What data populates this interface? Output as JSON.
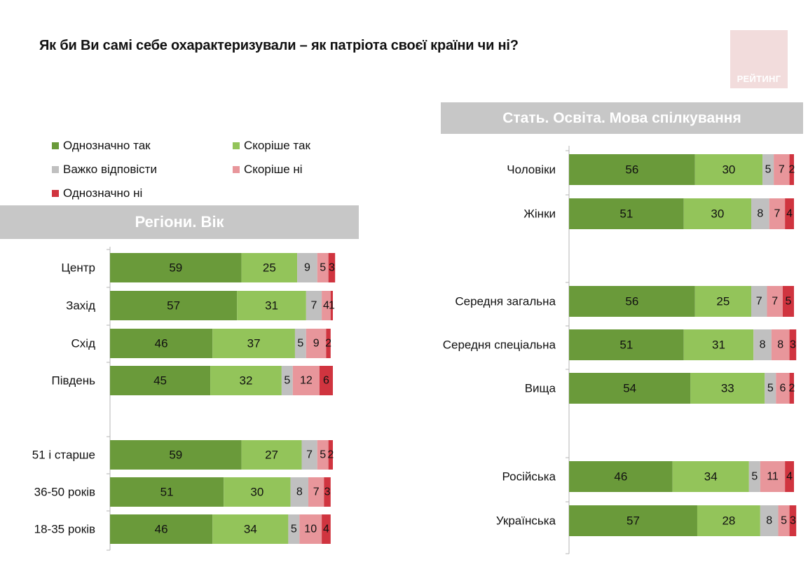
{
  "title": "Як  би Ви самі себе охарактеризували – як патріота своєї країни чи ні?",
  "logo_text": "РЕЙТИНГ",
  "panels": {
    "left_heading": "Регіони. Вік",
    "right_heading": "Стать. Освіта. Мова спілкування"
  },
  "colors": {
    "definitely_yes": "#6a9a3a",
    "rather_yes": "#93c45a",
    "hard_to_say": "#c0c0c0",
    "rather_no": "#e8969b",
    "definitely_no": "#d0343f",
    "heading_band": "#c7c7c7"
  },
  "chart_data": {
    "type": "bar",
    "orientation": "horizontal",
    "stacked": true,
    "xlim": [
      0,
      100
    ],
    "legend": [
      "Однозначно так",
      "Скоріше так",
      "Важко відповісти",
      "Скоріше ні",
      "Однозначно ні"
    ],
    "groups": [
      {
        "heading": "Регіони. Вік",
        "categories": [
          "Центр",
          "Захід",
          "Схід",
          "Південь",
          "51 і старше",
          "36-50 років",
          "18-35 років"
        ],
        "series": [
          {
            "name": "Однозначно так",
            "values": [
              59,
              57,
              46,
              45,
              59,
              51,
              46
            ]
          },
          {
            "name": "Скоріше так",
            "values": [
              25,
              31,
              37,
              32,
              27,
              30,
              34
            ]
          },
          {
            "name": "Важко відповісти",
            "values": [
              9,
              7,
              5,
              5,
              7,
              8,
              5
            ]
          },
          {
            "name": "Скоріше ні",
            "values": [
              5,
              4,
              9,
              12,
              5,
              7,
              10
            ]
          },
          {
            "name": "Однозначно ні",
            "values": [
              3,
              1,
              2,
              6,
              2,
              3,
              4
            ]
          }
        ]
      },
      {
        "heading": "Стать. Освіта. Мова спілкування",
        "categories": [
          "Чоловіки",
          "Жінки",
          "Середня загальна",
          "Середня спеціальна",
          "Вища",
          "Російська",
          "Українська"
        ],
        "series": [
          {
            "name": "Однозначно так",
            "values": [
              56,
              51,
              56,
              51,
              54,
              46,
              57
            ]
          },
          {
            "name": "Скоріше так",
            "values": [
              30,
              30,
              25,
              31,
              33,
              34,
              28
            ]
          },
          {
            "name": "Важко відповісти",
            "values": [
              5,
              8,
              7,
              8,
              5,
              5,
              8
            ]
          },
          {
            "name": "Скоріше ні",
            "values": [
              7,
              7,
              7,
              8,
              6,
              11,
              5
            ]
          },
          {
            "name": "Однозначно ні",
            "values": [
              2,
              4,
              5,
              3,
              2,
              4,
              3
            ]
          }
        ]
      }
    ]
  }
}
